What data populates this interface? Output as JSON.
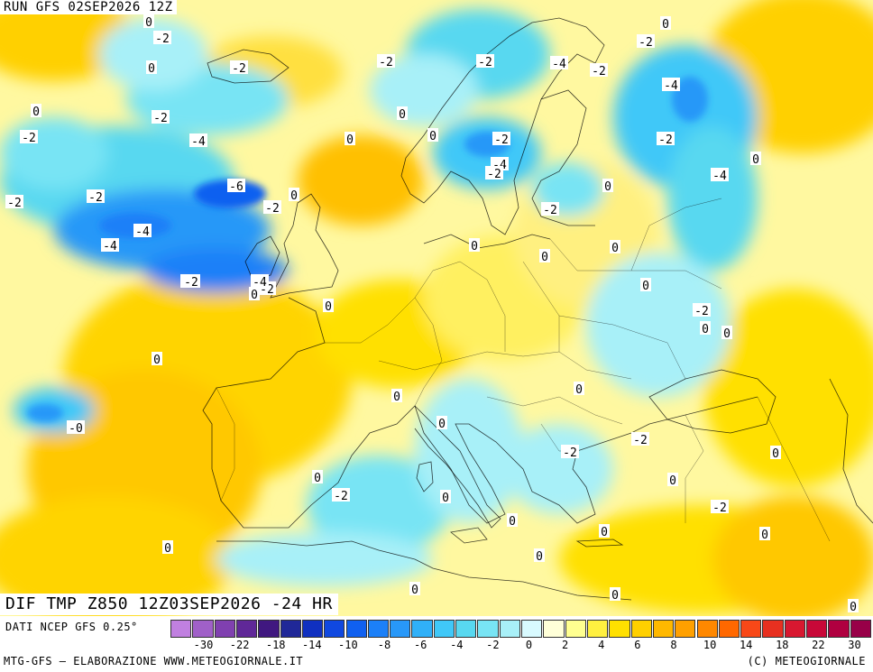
{
  "header": {
    "run_label": "RUN GFS 02SEP2026 12Z"
  },
  "field": {
    "label": "DIF TMP Z850 12Z03SEP2026 -24 HR"
  },
  "footer": {
    "data_source": "DATI NCEP GFS 0.25°",
    "credit_left": "MTG-GFS — ELABORAZIONE WWW.METEOGIORNALE.IT",
    "credit_right": "(C) METEOGIORNALE"
  },
  "legend": {
    "colors": [
      "#c080e0",
      "#a060c8",
      "#8040b0",
      "#602898",
      "#401880",
      "#202898",
      "#1030c0",
      "#1048e0",
      "#1060f0",
      "#1c80f8",
      "#2898f8",
      "#30b0f8",
      "#40c8f8",
      "#58d8f0",
      "#78e4f4",
      "#a8f0f8",
      "#d8faff",
      "#ffffd8",
      "#ffff90",
      "#fff040",
      "#ffe000",
      "#ffd000",
      "#ffb800",
      "#ffa000",
      "#ff8800",
      "#ff6800",
      "#f84818",
      "#e83020",
      "#d81830",
      "#c80838",
      "#b00040",
      "#980048"
    ],
    "ticks": [
      "-30",
      "-22",
      "-18",
      "-14",
      "-10",
      "-8",
      "-6",
      "-4",
      "-2",
      "0",
      "2",
      "4",
      "6",
      "8",
      "10",
      "14",
      "18",
      "22",
      "30"
    ]
  },
  "isolines": [
    {
      "t": "0"
    },
    {
      "t": "-2"
    },
    {
      "t": "-2"
    },
    {
      "t": "0"
    },
    {
      "t": "0"
    },
    {
      "t": "-2"
    },
    {
      "t": "-2"
    },
    {
      "t": "-2"
    },
    {
      "t": "-2"
    },
    {
      "t": "-4"
    },
    {
      "t": "-2"
    },
    {
      "t": "-2"
    },
    {
      "t": "0"
    },
    {
      "t": "-4"
    },
    {
      "t": "0"
    },
    {
      "t": "-2"
    },
    {
      "t": "-4"
    },
    {
      "t": "-2"
    },
    {
      "t": "-6"
    },
    {
      "t": "-2"
    },
    {
      "t": "0"
    },
    {
      "t": "-2"
    },
    {
      "t": "-2"
    },
    {
      "t": "-4"
    },
    {
      "t": "-4"
    },
    {
      "t": "-4"
    },
    {
      "t": "0"
    },
    {
      "t": "-2"
    },
    {
      "t": "-2"
    },
    {
      "t": "-4"
    },
    {
      "t": "0"
    },
    {
      "t": "0"
    },
    {
      "t": "0"
    },
    {
      "t": "0"
    },
    {
      "t": "0"
    },
    {
      "t": "0"
    },
    {
      "t": "-2"
    },
    {
      "t": "0"
    },
    {
      "t": "0"
    },
    {
      "t": "0"
    },
    {
      "t": "0"
    },
    {
      "t": "0"
    },
    {
      "t": "0"
    },
    {
      "t": "-2"
    },
    {
      "t": "-2"
    },
    {
      "t": "0"
    },
    {
      "t": "-2"
    },
    {
      "t": "0"
    },
    {
      "t": "-2"
    },
    {
      "t": "0"
    },
    {
      "t": "0"
    },
    {
      "t": "0"
    },
    {
      "t": "-2"
    },
    {
      "t": "0"
    },
    {
      "t": "0"
    },
    {
      "t": "0"
    },
    {
      "t": "0"
    },
    {
      "t": "0"
    },
    {
      "t": "0"
    }
  ]
}
